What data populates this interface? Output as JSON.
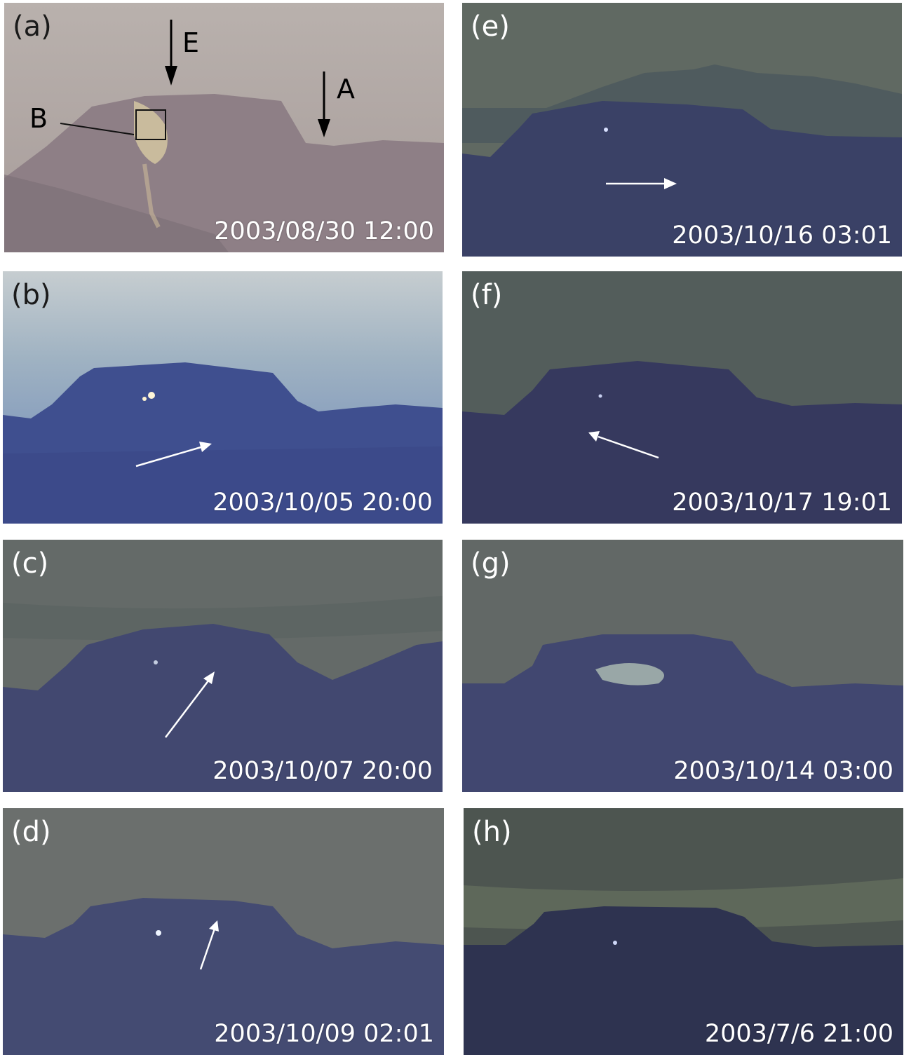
{
  "panels": [
    {
      "label": "(a)",
      "timestamp": "2003/08/30 12:00"
    },
    {
      "label": "(b)",
      "timestamp": "2003/10/05 20:00"
    },
    {
      "label": "(c)",
      "timestamp": "2003/10/07 20:00"
    },
    {
      "label": "(d)",
      "timestamp": "2003/10/09 02:01"
    },
    {
      "label": "(e)",
      "timestamp": "2003/10/16 03:01"
    },
    {
      "label": "(f)",
      "timestamp": "2003/10/17 19:01"
    },
    {
      "label": "(g)",
      "timestamp": "2003/10/14 03:00"
    },
    {
      "label": "(h)",
      "timestamp": "2003/7/6 21:00"
    }
  ],
  "markers": {
    "e": "E",
    "a": "A",
    "b": "B"
  },
  "colors": {
    "day_sky": "#b4aaa6",
    "day_ground": "#8f7f86",
    "night_sky": "#5a6060",
    "night_ground": "#3b3f66",
    "glow": "#f6f2d6"
  }
}
